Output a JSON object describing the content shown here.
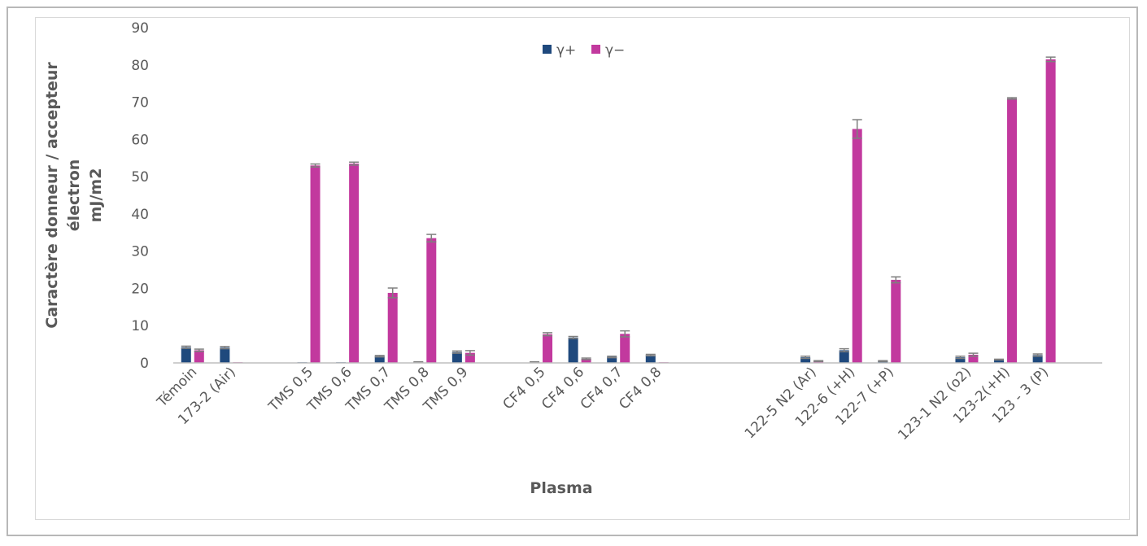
{
  "chart_data": {
    "type": "bar",
    "title": "",
    "xlabel": "Plasma",
    "ylabel_lines": [
      "Caractère donneur / accepteur",
      "électron",
      "mJ/m2"
    ],
    "ylim": [
      0,
      90
    ],
    "yticks": [
      0,
      10,
      20,
      30,
      40,
      50,
      60,
      70,
      80,
      90
    ],
    "grid": false,
    "legend_position": "top-center",
    "slots": 24,
    "categories": [
      {
        "slot": 0,
        "label": "Témoin"
      },
      {
        "slot": 1,
        "label": "173-2 (Air)"
      },
      {
        "slot": 3,
        "label": "TMS 0,5"
      },
      {
        "slot": 4,
        "label": "TMS 0,6"
      },
      {
        "slot": 5,
        "label": "TMS 0,7"
      },
      {
        "slot": 6,
        "label": "TMS 0,8"
      },
      {
        "slot": 7,
        "label": "TMS 0,9"
      },
      {
        "slot": 9,
        "label": "CF4 0,5"
      },
      {
        "slot": 10,
        "label": "CF4 0,6"
      },
      {
        "slot": 11,
        "label": "CF4 0,7"
      },
      {
        "slot": 12,
        "label": "CF4 0,8"
      },
      {
        "slot": 16,
        "label": "122-5 N2 (Ar)"
      },
      {
        "slot": 17,
        "label": "122-6 (+H)"
      },
      {
        "slot": 18,
        "label": "122-7 (+P)"
      },
      {
        "slot": 20,
        "label": "123-1 N2 (o2)"
      },
      {
        "slot": 21,
        "label": "123-2(+H)"
      },
      {
        "slot": 22,
        "label": "123 - 3 (P)"
      }
    ],
    "series": [
      {
        "name": "γ+",
        "color": "#1f497d",
        "values": [
          4.2,
          4.1,
          0,
          0,
          1.8,
          0.2,
          2.9,
          0.2,
          6.8,
          1.6,
          2.1,
          1.5,
          3.4,
          0.5,
          1.5,
          0.9,
          2.1
        ],
        "errors": [
          0.3,
          0.3,
          0,
          0,
          0.2,
          0.1,
          0.3,
          0.1,
          0.3,
          0.2,
          0.2,
          0.3,
          0.4,
          0.1,
          0.3,
          0.1,
          0.3
        ]
      },
      {
        "name": "γ−",
        "color": "#c2399e",
        "values": [
          3.4,
          0,
          53,
          53.5,
          18.8,
          33.5,
          2.7,
          7.7,
          1.1,
          7.8,
          0,
          0.5,
          62.8,
          22.3,
          2.2,
          71,
          81.5
        ],
        "errors": [
          0.3,
          0,
          0.4,
          0.4,
          1.3,
          1.0,
          0.6,
          0.4,
          0.2,
          0.8,
          0,
          0.1,
          2.5,
          0.8,
          0.4,
          0.2,
          0.6
        ]
      }
    ]
  }
}
